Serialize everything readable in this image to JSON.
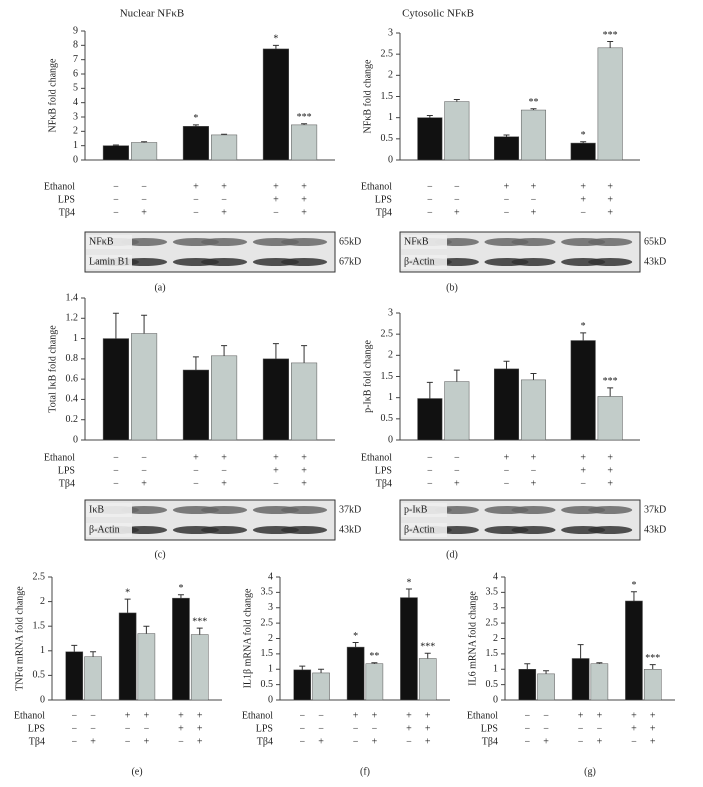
{
  "chart_data": [
    {
      "type": "bar",
      "panel": "(a)",
      "title": "Nuclear NFκB",
      "ylabel": "NFκB fold change",
      "categories": [
        null,
        null,
        null
      ],
      "ylim": [
        0,
        9
      ],
      "yticks": [
        0,
        1,
        2,
        3,
        4,
        5,
        6,
        7,
        8,
        9
      ],
      "series": [
        {
          "color": "#111111",
          "values": [
            1.0,
            2.35,
            7.75
          ],
          "errors": [
            0.05,
            0.1,
            0.25
          ],
          "stars": [
            null,
            "*",
            "*"
          ]
        },
        {
          "color": "#c2ccc9",
          "values": [
            1.22,
            1.75,
            2.45
          ],
          "errors": [
            0.05,
            0.05,
            0.08
          ],
          "stars": [
            null,
            null,
            "***"
          ]
        }
      ],
      "treatments": [
        {
          "name": "Ethanol",
          "signs": [
            "−",
            "−",
            "+",
            "+",
            "+",
            "+"
          ]
        },
        {
          "name": "LPS",
          "signs": [
            "−",
            "−",
            "−",
            "−",
            "+",
            "+"
          ]
        },
        {
          "name": "Tβ4",
          "signs": [
            "−",
            "+",
            "−",
            "+",
            "−",
            "+"
          ]
        }
      ],
      "blot": [
        {
          "name": "NFκB",
          "size": "65kD"
        },
        {
          "name": "Lamin B1",
          "size": "67kD"
        }
      ]
    },
    {
      "type": "bar",
      "panel": "(b)",
      "title": "Cytosolic NFκB",
      "ylabel": "NFκB fold change",
      "categories": [
        null,
        null,
        null
      ],
      "ylim": [
        0,
        3
      ],
      "yticks": [
        0,
        0.5,
        1,
        1.5,
        2,
        2.5,
        3
      ],
      "series": [
        {
          "color": "#111111",
          "values": [
            1.0,
            0.55,
            0.4
          ],
          "errors": [
            0.05,
            0.04,
            0.03
          ],
          "stars": [
            null,
            null,
            "*"
          ]
        },
        {
          "color": "#c2ccc9",
          "values": [
            1.38,
            1.18,
            2.65
          ],
          "errors": [
            0.05,
            0.03,
            0.15
          ],
          "stars": [
            null,
            "**",
            "***"
          ]
        }
      ],
      "treatments": [
        {
          "name": "Ethanol",
          "signs": [
            "−",
            "−",
            "+",
            "+",
            "+",
            "+"
          ]
        },
        {
          "name": "LPS",
          "signs": [
            "−",
            "−",
            "−",
            "−",
            "+",
            "+"
          ]
        },
        {
          "name": "Tβ4",
          "signs": [
            "−",
            "+",
            "−",
            "+",
            "−",
            "+"
          ]
        }
      ],
      "blot": [
        {
          "name": "NFκB",
          "size": "65kD"
        },
        {
          "name": "β-Actin",
          "size": "43kD"
        }
      ]
    },
    {
      "type": "bar",
      "panel": "(c)",
      "ylabel": "Total IκB fold change",
      "categories": [
        null,
        null,
        null
      ],
      "ylim": [
        0,
        1.4
      ],
      "yticks": [
        0,
        0.2,
        0.4,
        0.6,
        0.8,
        1,
        1.2,
        1.4
      ],
      "series": [
        {
          "color": "#111111",
          "values": [
            1.0,
            0.69,
            0.8
          ],
          "errors": [
            0.25,
            0.13,
            0.15
          ]
        },
        {
          "color": "#c2ccc9",
          "values": [
            1.05,
            0.83,
            0.76
          ],
          "errors": [
            0.18,
            0.1,
            0.17
          ]
        }
      ],
      "treatments": [
        {
          "name": "Ethanol",
          "signs": [
            "−",
            "−",
            "+",
            "+",
            "+",
            "+"
          ]
        },
        {
          "name": "LPS",
          "signs": [
            "−",
            "−",
            "−",
            "−",
            "+",
            "+"
          ]
        },
        {
          "name": "Tβ4",
          "signs": [
            "−",
            "+",
            "−",
            "+",
            "−",
            "+"
          ]
        }
      ],
      "blot": [
        {
          "name": "IκB",
          "size": "37kD"
        },
        {
          "name": "β-Actin",
          "size": "43kD"
        }
      ]
    },
    {
      "type": "bar",
      "panel": "(d)",
      "ylabel": "p-IκB fold change",
      "categories": [
        null,
        null,
        null
      ],
      "ylim": [
        0,
        3
      ],
      "yticks": [
        0,
        0.5,
        1,
        1.5,
        2,
        2.5,
        3
      ],
      "series": [
        {
          "color": "#111111",
          "values": [
            0.98,
            1.68,
            2.35
          ],
          "errors": [
            0.38,
            0.18,
            0.18
          ],
          "stars": [
            null,
            null,
            "*"
          ]
        },
        {
          "color": "#c2ccc9",
          "values": [
            1.38,
            1.42,
            1.03
          ],
          "errors": [
            0.27,
            0.15,
            0.2
          ],
          "stars": [
            null,
            null,
            "***"
          ]
        }
      ],
      "treatments": [
        {
          "name": "Ethanol",
          "signs": [
            "−",
            "−",
            "+",
            "+",
            "+",
            "+"
          ]
        },
        {
          "name": "LPS",
          "signs": [
            "−",
            "−",
            "−",
            "−",
            "+",
            "+"
          ]
        },
        {
          "name": "Tβ4",
          "signs": [
            "−",
            "+",
            "−",
            "+",
            "−",
            "+"
          ]
        }
      ],
      "blot": [
        {
          "name": "p-IκB",
          "size": "37kD"
        },
        {
          "name": "β-Actin",
          "size": "43kD"
        }
      ]
    },
    {
      "type": "bar",
      "panel": "(e)",
      "ylabel": "TNFα mRNA fold change",
      "categories": [
        null,
        null,
        null
      ],
      "ylim": [
        0,
        2.5
      ],
      "yticks": [
        0,
        0.5,
        1,
        1.5,
        2,
        2.5
      ],
      "series": [
        {
          "color": "#111111",
          "values": [
            0.98,
            1.77,
            2.07
          ],
          "errors": [
            0.13,
            0.28,
            0.07
          ],
          "stars": [
            null,
            "*",
            "*"
          ]
        },
        {
          "color": "#c2ccc9",
          "values": [
            0.88,
            1.35,
            1.33
          ],
          "errors": [
            0.1,
            0.15,
            0.13
          ],
          "stars": [
            null,
            null,
            "***"
          ]
        }
      ],
      "treatments": [
        {
          "name": "Ethanol",
          "signs": [
            "−",
            "−",
            "+",
            "+",
            "+",
            "+"
          ]
        },
        {
          "name": "LPS",
          "signs": [
            "−",
            "−",
            "−",
            "−",
            "+",
            "+"
          ]
        },
        {
          "name": "Tβ4",
          "signs": [
            "−",
            "+",
            "−",
            "+",
            "−",
            "+"
          ]
        }
      ]
    },
    {
      "type": "bar",
      "panel": "(f)",
      "ylabel": "IL1β mRNA fold change",
      "categories": [
        null,
        null,
        null
      ],
      "ylim": [
        0,
        4
      ],
      "yticks": [
        0,
        0.5,
        1,
        1.5,
        2,
        2.5,
        3,
        3.5,
        4
      ],
      "series": [
        {
          "color": "#111111",
          "values": [
            0.98,
            1.72,
            3.33
          ],
          "errors": [
            0.12,
            0.15,
            0.28
          ],
          "stars": [
            null,
            "*",
            "*"
          ]
        },
        {
          "color": "#c2ccc9",
          "values": [
            0.88,
            1.18,
            1.35
          ],
          "errors": [
            0.12,
            0.03,
            0.17
          ],
          "stars": [
            null,
            "**",
            "***"
          ]
        }
      ],
      "treatments": [
        {
          "name": "Ethanol",
          "signs": [
            "−",
            "−",
            "+",
            "+",
            "+",
            "+"
          ]
        },
        {
          "name": "LPS",
          "signs": [
            "−",
            "−",
            "−",
            "−",
            "+",
            "+"
          ]
        },
        {
          "name": "Tβ4",
          "signs": [
            "−",
            "+",
            "−",
            "+",
            "−",
            "+"
          ]
        }
      ]
    },
    {
      "type": "bar",
      "panel": "(g)",
      "ylabel": "IL6 mRNA fold change",
      "categories": [
        null,
        null,
        null
      ],
      "ylim": [
        0,
        4
      ],
      "yticks": [
        0,
        0.5,
        1,
        1.5,
        2,
        2.5,
        3,
        3.5,
        4
      ],
      "series": [
        {
          "color": "#111111",
          "values": [
            1.0,
            1.35,
            3.22
          ],
          "errors": [
            0.18,
            0.45,
            0.3
          ],
          "stars": [
            null,
            null,
            "*"
          ]
        },
        {
          "color": "#c2ccc9",
          "values": [
            0.85,
            1.18,
            1.0
          ],
          "errors": [
            0.1,
            0.03,
            0.15
          ],
          "stars": [
            null,
            null,
            "***"
          ]
        }
      ],
      "treatments": [
        {
          "name": "Ethanol",
          "signs": [
            "−",
            "−",
            "+",
            "+",
            "+",
            "+"
          ]
        },
        {
          "name": "LPS",
          "signs": [
            "−",
            "−",
            "−",
            "−",
            "+",
            "+"
          ]
        },
        {
          "name": "Tβ4",
          "signs": [
            "−",
            "+",
            "−",
            "+",
            "−",
            "+"
          ]
        }
      ]
    }
  ]
}
